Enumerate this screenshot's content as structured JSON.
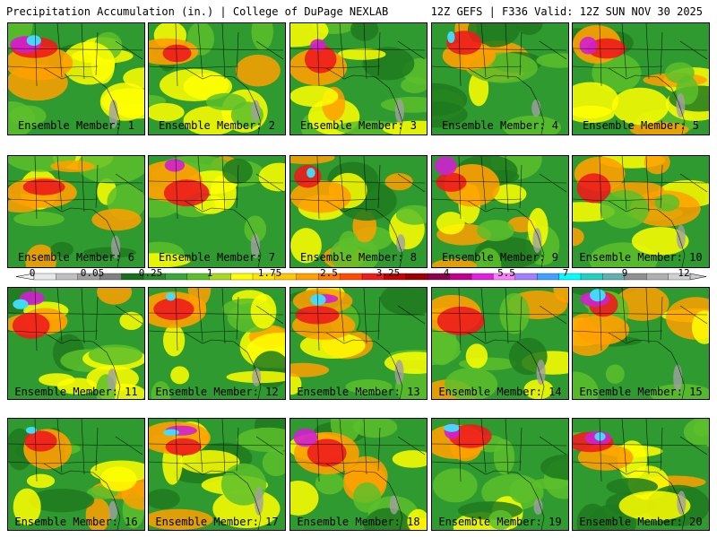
{
  "header": {
    "left": "Precipitation Accumulation (in.) | College of DuPage NEXLAB",
    "right": "12Z GEFS | F336 Valid: 12Z SUN NOV 30 2025"
  },
  "panels": [
    {
      "label": "Ensemble Member: 1"
    },
    {
      "label": "Ensemble Member: 2"
    },
    {
      "label": "Ensemble Member: 3"
    },
    {
      "label": "Ensemble Member: 4"
    },
    {
      "label": "Ensemble Member: 5"
    },
    {
      "label": "Ensemble Member: 6"
    },
    {
      "label": "Ensemble Member: 7"
    },
    {
      "label": "Ensemble Member: 8"
    },
    {
      "label": "Ensemble Member: 9"
    },
    {
      "label": "Ensemble Member: 10"
    },
    {
      "label": "Ensemble Member: 11"
    },
    {
      "label": "Ensemble Member: 12"
    },
    {
      "label": "Ensemble Member: 13"
    },
    {
      "label": "Ensemble Member: 14"
    },
    {
      "label": "Ensemble Member: 15"
    },
    {
      "label": "Ensemble Member: 16"
    },
    {
      "label": "Ensemble Member: 17"
    },
    {
      "label": "Ensemble Member: 18"
    },
    {
      "label": "Ensemble Member: 19"
    },
    {
      "label": "Ensemble Member: 20"
    }
  ],
  "colorbar": {
    "tick_labels": [
      "0",
      "0.05",
      "0.25",
      "1",
      "1.75",
      "2.5",
      "3.25",
      "4",
      "5.5",
      "7",
      "9",
      "12"
    ],
    "colors": [
      "#e8e8e8",
      "#c0c0c0",
      "#a0a0a0",
      "#808080",
      "#1c6e1c",
      "#2d8a2d",
      "#3ba63b",
      "#5cbf2a",
      "#a8d820",
      "#ffff00",
      "#ffe600",
      "#ffc800",
      "#ffa000",
      "#ff7800",
      "#ff4a00",
      "#ee1c1c",
      "#c80000",
      "#9c0000",
      "#8c0050",
      "#c0008c",
      "#e020e0",
      "#ff80ff",
      "#a080ff",
      "#40a0ff",
      "#00ffff",
      "#20d0c0",
      "#60b0b0",
      "#909090",
      "#b0b0b0",
      "#d0d0d0"
    ]
  },
  "map_colors": {
    "green_dark": "#1f7a1f",
    "green": "#2f9a2f",
    "green_light": "#5cbf2a",
    "yellow": "#ffff00",
    "orange": "#ffa000",
    "red": "#ee1c1c",
    "dark_red": "#a00000",
    "magenta": "#d020d0",
    "cyan": "#40e0ff",
    "gray": "#a0a0a0"
  }
}
